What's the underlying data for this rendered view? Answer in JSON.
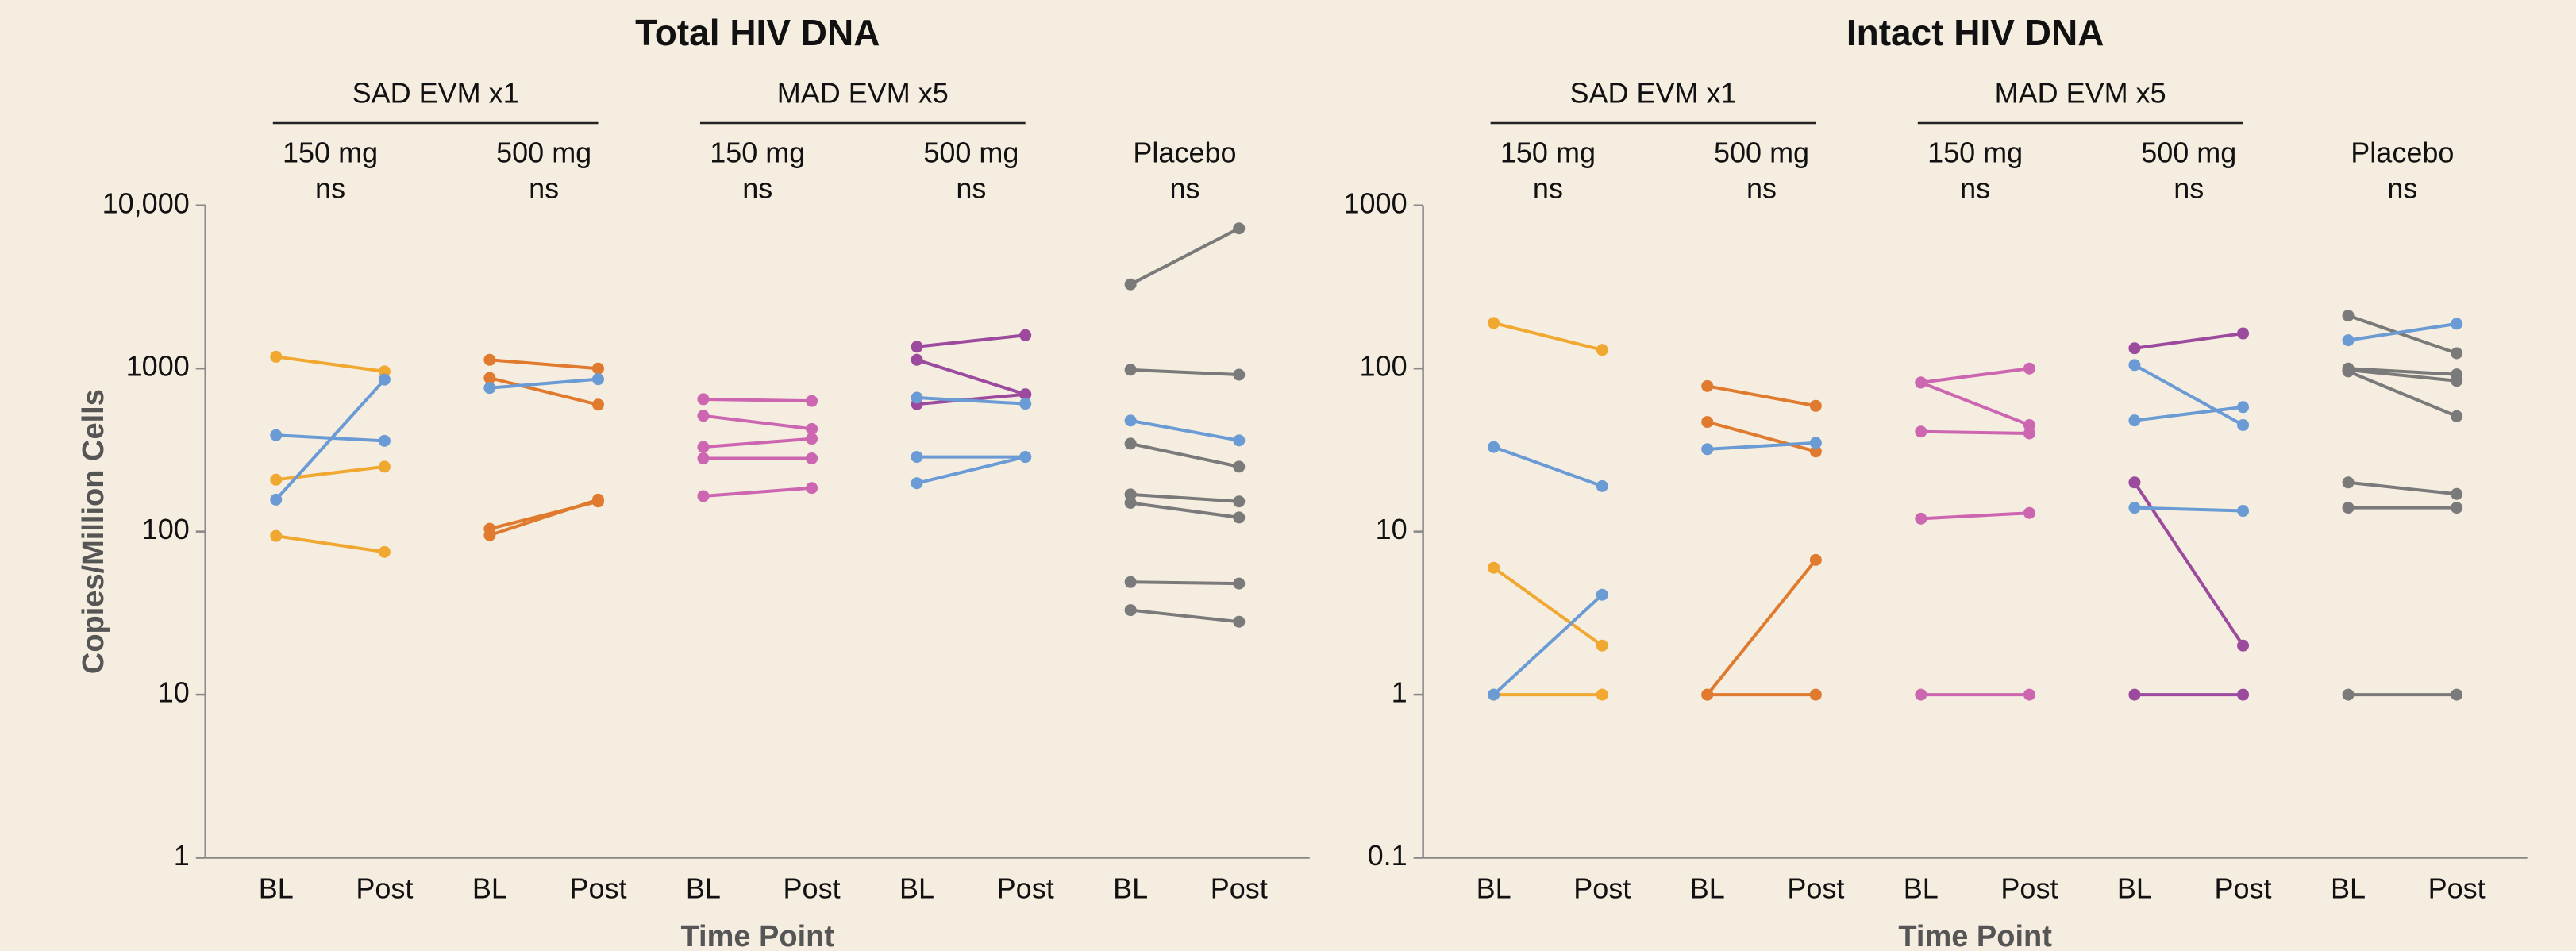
{
  "chart_data": [
    {
      "type": "paired-line",
      "title": "Total HIV DNA",
      "y_label": "Copies/Million Cells",
      "x_label": "Time Point",
      "categories": [
        "BL",
        "Post"
      ],
      "log_scale": true,
      "ylim": [
        1,
        10000
      ],
      "yticks": [
        1,
        10,
        100,
        1000,
        {
          "value": 10000,
          "label": "10,000"
        }
      ],
      "arms": [
        {
          "name": "SAD EVM x1",
          "groups": [
            {
              "name": "150 mg",
              "stat": "ns",
              "series": [
                {
                  "color": "#f0a830",
                  "values": [
                    1180,
                    960
                  ]
                },
                {
                  "color": "#f0a830",
                  "values": [
                    208,
                    250
                  ]
                },
                {
                  "color": "#f0a830",
                  "values": [
                    94,
                    75
                  ]
                },
                {
                  "color": "#6a9bd4",
                  "values": [
                    390,
                    360
                  ]
                },
                {
                  "color": "#6a9bd4",
                  "values": [
                    157,
                    855
                  ]
                }
              ]
            },
            {
              "name": "500 mg",
              "stat": "ns",
              "series": [
                {
                  "color": "#e07a2e",
                  "values": [
                    1130,
                    1000
                  ]
                },
                {
                  "color": "#e07a2e",
                  "values": [
                    875,
                    600
                  ]
                },
                {
                  "color": "#e07a2e",
                  "values": [
                    104,
                    153
                  ]
                },
                {
                  "color": "#e07a2e",
                  "values": [
                    95,
                    157
                  ]
                },
                {
                  "color": "#6a9bd4",
                  "values": [
                    760,
                    860
                  ]
                }
              ]
            }
          ]
        },
        {
          "name": "MAD EVM x5",
          "groups": [
            {
              "name": "150 mg",
              "stat": "ns",
              "series": [
                {
                  "color": "#cc66b0",
                  "values": [
                    648,
                    632
                  ]
                },
                {
                  "color": "#cc66b0",
                  "values": [
                    513,
                    426
                  ]
                },
                {
                  "color": "#cc66b0",
                  "values": [
                    330,
                    371
                  ]
                },
                {
                  "color": "#cc66b0",
                  "values": [
                    281,
                    281
                  ]
                },
                {
                  "color": "#cc66b0",
                  "values": [
                    165,
                    185
                  ]
                }
              ]
            },
            {
              "name": "500 mg",
              "stat": "ns",
              "series": [
                {
                  "color": "#9b4a9e",
                  "values": [
                    1360,
                    1600
                  ]
                },
                {
                  "color": "#9b4a9e",
                  "values": [
                    1130,
                    694
                  ]
                },
                {
                  "color": "#9b4a9e",
                  "values": [
                    604,
                    694
                  ]
                },
                {
                  "color": "#6a9bd4",
                  "values": [
                    662,
                    608
                  ]
                },
                {
                  "color": "#6a9bd4",
                  "values": [
                    287,
                    287
                  ]
                },
                {
                  "color": "#6a9bd4",
                  "values": [
                    198,
                    287
                  ]
                }
              ]
            }
          ]
        },
        {
          "groups": [
            {
              "name": "Placebo",
              "stat": "ns",
              "series": [
                {
                  "color": "#7a7a7a",
                  "values": [
                    3280,
                    7230
                  ]
                },
                {
                  "color": "#7a7a7a",
                  "values": [
                    982,
                    916
                  ]
                },
                {
                  "color": "#6a9bd4",
                  "values": [
                    479,
                    362
                  ]
                },
                {
                  "color": "#7a7a7a",
                  "values": [
                    346,
                    250
                  ]
                },
                {
                  "color": "#7a7a7a",
                  "values": [
                    169,
                    153
                  ]
                },
                {
                  "color": "#7a7a7a",
                  "values": [
                    150,
                    122
                  ]
                },
                {
                  "color": "#7a7a7a",
                  "values": [
                    49,
                    48
                  ]
                },
                {
                  "color": "#7a7a7a",
                  "values": [
                    33,
                    28
                  ]
                }
              ]
            }
          ]
        }
      ]
    },
    {
      "type": "paired-line",
      "title": "Intact HIV DNA",
      "x_label": "Time Point",
      "categories": [
        "BL",
        "Post"
      ],
      "log_scale": true,
      "ylim": [
        0.1,
        1000
      ],
      "yticks": [
        0.1,
        1,
        10,
        100,
        1000
      ],
      "arms": [
        {
          "name": "SAD EVM x1",
          "groups": [
            {
              "name": "150 mg",
              "stat": "ns",
              "series": [
                {
                  "color": "#f0a830",
                  "values": [
                    190,
                    130
                  ]
                },
                {
                  "color": "#f0a830",
                  "values": [
                    6,
                    2
                  ]
                },
                {
                  "color": "#f0a830",
                  "values": [
                    1,
                    1
                  ]
                },
                {
                  "color": "#6a9bd4",
                  "values": [
                    33,
                    19
                  ]
                },
                {
                  "color": "#6a9bd4",
                  "values": [
                    1,
                    4.1
                  ]
                }
              ]
            },
            {
              "name": "500 mg",
              "stat": "ns",
              "series": [
                {
                  "color": "#e07a2e",
                  "values": [
                    78,
                    59
                  ]
                },
                {
                  "color": "#e07a2e",
                  "values": [
                    47,
                    31
                  ]
                },
                {
                  "color": "#e07a2e",
                  "values": [
                    1,
                    6.7
                  ]
                },
                {
                  "color": "#e07a2e",
                  "values": [
                    1,
                    1
                  ]
                },
                {
                  "color": "#6a9bd4",
                  "values": [
                    32,
                    35
                  ]
                }
              ]
            }
          ]
        },
        {
          "name": "MAD EVM x5",
          "groups": [
            {
              "name": "150 mg",
              "stat": "ns",
              "series": [
                {
                  "color": "#cc66b0",
                  "values": [
                    82,
                    100
                  ]
                },
                {
                  "color": "#cc66b0",
                  "values": [
                    82,
                    45
                  ]
                },
                {
                  "color": "#cc66b0",
                  "values": [
                    41,
                    40
                  ]
                },
                {
                  "color": "#cc66b0",
                  "values": [
                    12,
                    13
                  ]
                },
                {
                  "color": "#cc66b0",
                  "values": [
                    1,
                    1
                  ]
                }
              ]
            },
            {
              "name": "500 mg",
              "stat": "ns",
              "series": [
                {
                  "color": "#9b4a9e",
                  "values": [
                    133,
                    164
                  ]
                },
                {
                  "color": "#9b4a9e",
                  "values": [
                    20,
                    2
                  ]
                },
                {
                  "color": "#9b4a9e",
                  "values": [
                    1,
                    1
                  ]
                },
                {
                  "color": "#6a9bd4",
                  "values": [
                    105,
                    45
                  ]
                },
                {
                  "color": "#6a9bd4",
                  "values": [
                    48,
                    58
                  ]
                },
                {
                  "color": "#6a9bd4",
                  "values": [
                    14,
                    13.4
                  ]
                }
              ]
            }
          ]
        },
        {
          "groups": [
            {
              "name": "Placebo",
              "stat": "ns",
              "series": [
                {
                  "color": "#7a7a7a",
                  "values": [
                    211,
                    124
                  ]
                },
                {
                  "color": "#7a7a7a",
                  "values": [
                    100,
                    92
                  ]
                },
                {
                  "color": "#7a7a7a",
                  "values": [
                    96,
                    51
                  ]
                },
                {
                  "color": "#7a7a7a",
                  "values": [
                    98,
                    84
                  ]
                },
                {
                  "color": "#6a9bd4",
                  "values": [
                    149,
                    188
                  ]
                },
                {
                  "color": "#7a7a7a",
                  "values": [
                    20,
                    17
                  ]
                },
                {
                  "color": "#7a7a7a",
                  "values": [
                    14,
                    14
                  ]
                },
                {
                  "color": "#7a7a7a",
                  "values": [
                    1,
                    1
                  ]
                }
              ]
            }
          ]
        }
      ]
    }
  ]
}
